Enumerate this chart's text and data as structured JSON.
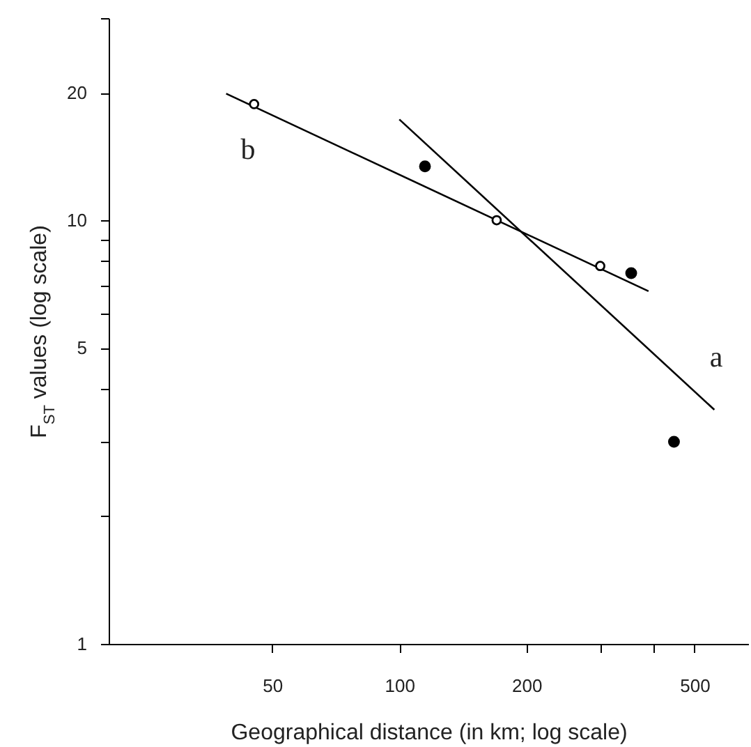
{
  "chart_data": {
    "type": "scatter",
    "xlabel": "Geographical distance (in km; log scale)",
    "ylabel": "F$_{ST}$ values (log scale)",
    "log": "xy",
    "xlim": [
      20.5,
      670
    ],
    "ylim": [
      1,
      30
    ],
    "xticks": [
      50,
      100,
      200,
      {
        "value": 300,
        "label": null
      },
      {
        "value": 400,
        "label": null
      },
      500
    ],
    "yticks": [
      1,
      {
        "value": 2,
        "label": null
      },
      {
        "value": 3,
        "label": null
      },
      {
        "value": 4,
        "label": null
      },
      5,
      {
        "value": 6,
        "label": null
      },
      {
        "value": 7,
        "label": null
      },
      {
        "value": 8,
        "label": null
      },
      {
        "value": 9,
        "label": null
      },
      10,
      20,
      {
        "value": 30,
        "label": null
      }
    ],
    "series": [
      {
        "type": "line",
        "color": "#000000",
        "marker": "none",
        "x": [
          38.9,
          389
        ],
        "values": [
          19.9,
          6.8
        ]
      },
      {
        "type": "line",
        "color": "#000000",
        "marker": "none",
        "x": [
          100,
          557
        ],
        "values": [
          17.3,
          3.57
        ]
      },
      {
        "color": "#ffffff",
        "marker": "circle",
        "x": [
          45.3,
          170,
          299
        ],
        "values": [
          18.8,
          10.0,
          7.8
        ]
      },
      {
        "color": "#000000",
        "marker": "circle",
        "x": [
          115,
          354,
          447
        ],
        "values": [
          13.4,
          7.5,
          3.0
        ]
      }
    ],
    "annotations": [
      "b",
      "a"
    ]
  }
}
